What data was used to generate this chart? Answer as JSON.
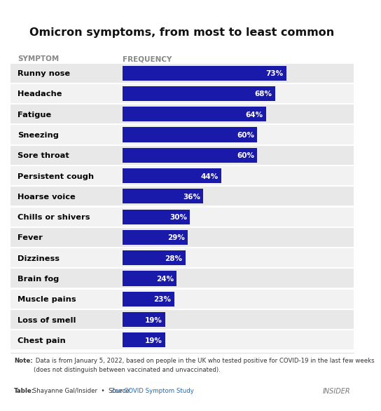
{
  "title": "Omicron symptoms, from most to least common",
  "col_header_symptom": "SYMPTOM",
  "col_header_frequency": "FREQUENCY",
  "symptoms": [
    "Runny nose",
    "Headache",
    "Fatigue",
    "Sneezing",
    "Sore throat",
    "Persistent cough",
    "Hoarse voice",
    "Chills or shivers",
    "Fever",
    "Dizziness",
    "Brain fog",
    "Muscle pains",
    "Loss of smell",
    "Chest pain"
  ],
  "values": [
    73,
    68,
    64,
    60,
    60,
    44,
    36,
    30,
    29,
    28,
    24,
    23,
    19,
    19
  ],
  "bar_color": "#1a1aaa",
  "bg_color_row_odd": "#e8e8e8",
  "bg_color_row_even": "#f2f2f2",
  "label_color": "#ffffff",
  "symptom_color": "#000000",
  "header_color": "#888888",
  "note_bold": "Note:",
  "note_text": " Data is from January 5, 2022, based on people in the UK who tested positive for COVID-19 in the last few weeks\n(does not distinguish between vaccinated and unvaccinated).",
  "table_bold": "Table:",
  "table_text": " Shayanne Gal/Insider  •  Source: ",
  "source_link": "Zoe COVID Symptom Study",
  "insider_text": "INSIDER",
  "background": "#ffffff",
  "max_val": 100
}
